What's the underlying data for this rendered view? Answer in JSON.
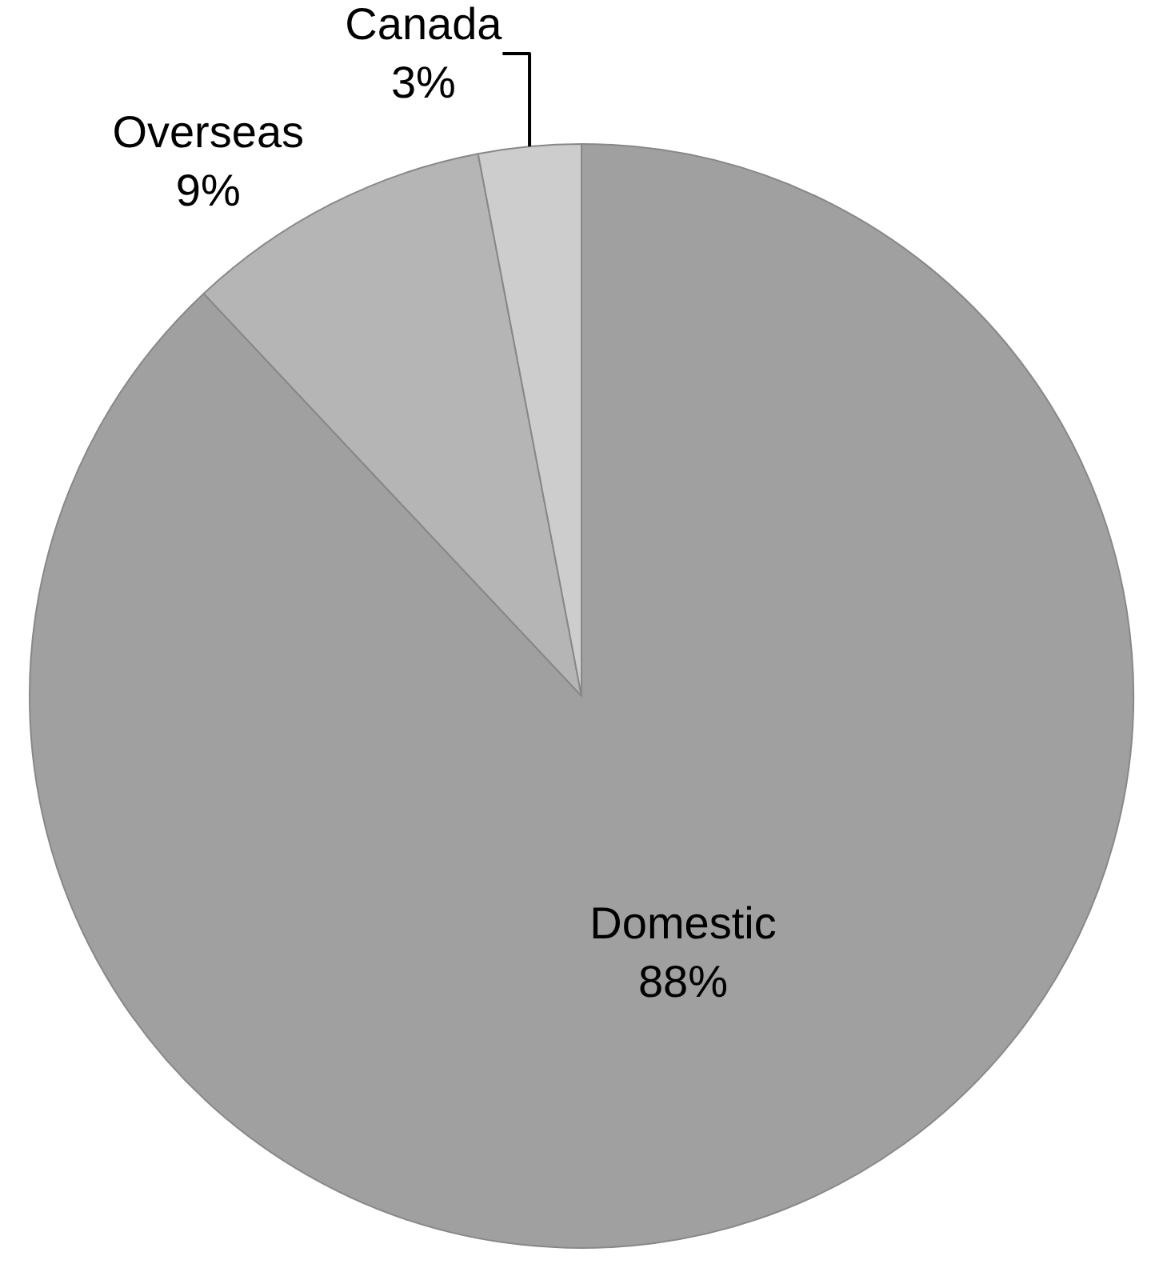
{
  "chart_data": {
    "type": "pie",
    "categories": [
      "Domestic",
      "Overseas",
      "Canada"
    ],
    "values": [
      88,
      9,
      3
    ],
    "colors": [
      "#a0a0a0",
      "#b5b5b5",
      "#cdcdcd"
    ],
    "value_labels": [
      "88%",
      "9%",
      "3%"
    ],
    "legend": false
  }
}
